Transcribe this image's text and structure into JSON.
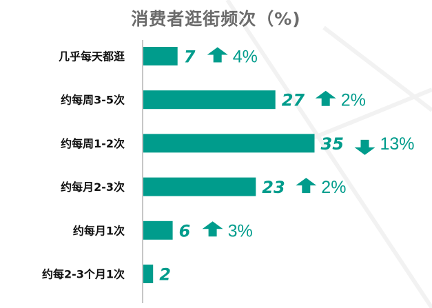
{
  "colors": {
    "bar": "#009c8c",
    "title": "#6b6b6b",
    "axis": "#8c8c8c",
    "label": "#111111"
  },
  "chart_data": {
    "type": "bar",
    "orientation": "horizontal",
    "title": "消费者逛街频次（%)",
    "categories": [
      "几乎每天都逛",
      "约每周3-5次",
      "约每周1-2次",
      "约每月2-3次",
      "约每月1次",
      "约每2-3个月1次"
    ],
    "values": [
      7,
      27,
      35,
      23,
      6,
      2
    ],
    "changes": [
      {
        "direction": "up",
        "text": "4%"
      },
      {
        "direction": "up",
        "text": "2%"
      },
      {
        "direction": "down",
        "text": "13%"
      },
      {
        "direction": "up",
        "text": "2%"
      },
      {
        "direction": "up",
        "text": "3%"
      },
      null
    ],
    "xlim": [
      0,
      40
    ],
    "grid": false,
    "legend": "none"
  }
}
